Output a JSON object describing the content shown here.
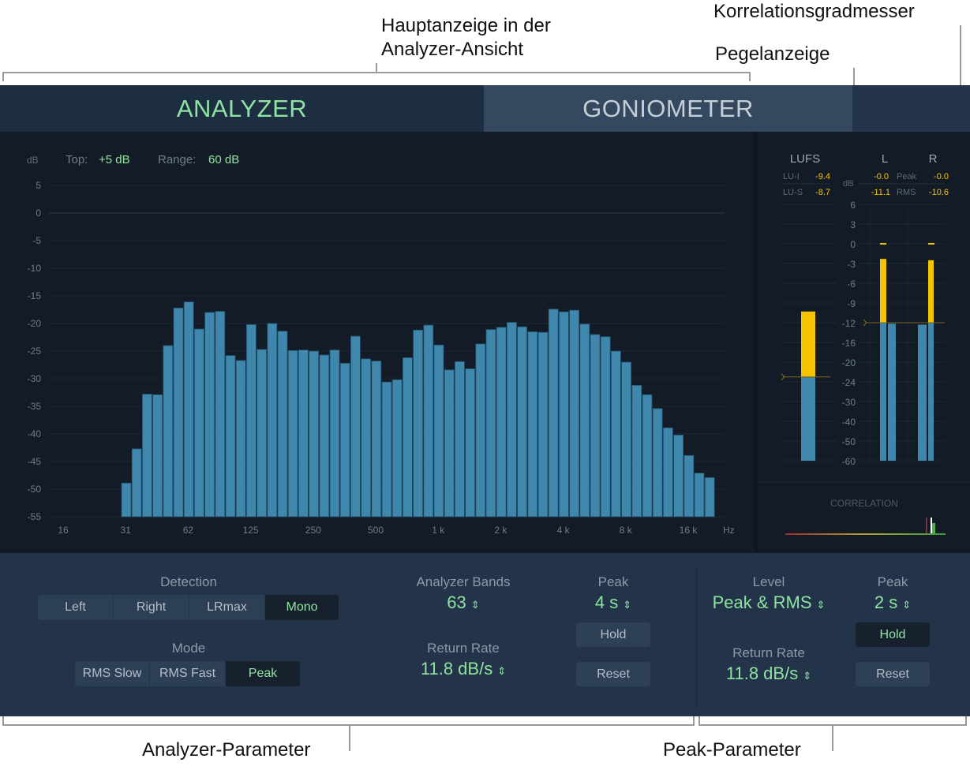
{
  "annotations": {
    "main_display": "Hauptanzeige in der\nAnalyzer-Ansicht",
    "correlation_meter": "Korrelationsgradmesser",
    "level_meter": "Pegelanzeige",
    "analyzer_params": "Analyzer-Parameter",
    "peak_params": "Peak-Parameter"
  },
  "tabs": [
    {
      "label": "ANALYZER",
      "active": true
    },
    {
      "label": "GONIOMETER",
      "active": false
    }
  ],
  "analyzer": {
    "db_label": "dB",
    "top_label": "Top:",
    "top_value": "+5 dB",
    "range_label": "Range:",
    "range_value": "60 dB"
  },
  "chart_data": {
    "type": "bar",
    "ylabel": "dB",
    "xlabel": "Hz",
    "ylim": [
      -55,
      5
    ],
    "y_ticks": [
      "5",
      "0",
      "-5",
      "-10",
      "-15",
      "-20",
      "-25",
      "-30",
      "-35",
      "-40",
      "-45",
      "-50",
      "-55"
    ],
    "x_ticks": [
      "16",
      "31",
      "62",
      "125",
      "250",
      "500",
      "1 k",
      "2 k",
      "4 k",
      "8 k",
      "16 k"
    ],
    "bands": 63,
    "values": [
      null,
      null,
      null,
      null,
      null,
      null,
      -48.9,
      -42.7,
      -32.8,
      -32.9,
      -24.0,
      -17.2,
      -16.1,
      -21.0,
      -18.0,
      -17.8,
      -25.8,
      -26.7,
      -20.2,
      -24.7,
      -20.0,
      -21.4,
      -24.9,
      -24.8,
      -25.0,
      -25.7,
      -24.8,
      -27.2,
      -22.3,
      -26.4,
      -26.8,
      -30.6,
      -30.2,
      -26.2,
      -21.2,
      -20.3,
      -23.9,
      -28.4,
      -26.9,
      -28.2,
      -23.7,
      -21.1,
      -20.7,
      -19.8,
      -20.6,
      -21.5,
      -21.6,
      -17.4,
      -17.9,
      -17.6,
      -20.1,
      -22.0,
      -22.4,
      -25.0,
      -27.0,
      -31.2,
      -32.9,
      -35.4,
      -38.9,
      -40.2,
      -43.9,
      -47.1,
      -47.9
    ],
    "grid": true,
    "bar_color": "#3f87ad"
  },
  "meters": {
    "lufs_title": "LUFS",
    "l_title": "L",
    "r_title": "R",
    "db_label": "dB",
    "lu_i_label": "LU-I",
    "lu_i_value": "-9.4",
    "lu_s_label": "LU-S",
    "lu_s_value": "-8.7",
    "peak_label": "Peak",
    "peak_l": "-0.0",
    "peak_r": "-0.0",
    "rms_label": "RMS",
    "rms_l": "-11.1",
    "rms_r": "-10.6",
    "scale": [
      "6",
      "3",
      "0",
      "-3",
      "-6",
      "-9",
      "-12",
      "-16",
      "-20",
      "-24",
      "-30",
      "-40",
      "-50",
      "-60"
    ],
    "lufs_bar": {
      "yellow_top": -10.3,
      "blue_top": -23,
      "target": -23
    },
    "l_peak_bar": {
      "yellow_top": -2.3,
      "blue_top": -12
    },
    "l_rms_bar": -12.2,
    "r_rms_bar": -12.4,
    "r_peak_bar": {
      "yellow_top": -2.5,
      "blue_top": -12
    },
    "target_level": -12,
    "peak_hold": 0,
    "colors": {
      "yellow": "#f5c400",
      "blue": "#3f87ad",
      "value_yellow": "#f5c400"
    }
  },
  "correlation": {
    "label": "CORRELATION"
  },
  "params": {
    "detection_label": "Detection",
    "detection_options": [
      "Left",
      "Right",
      "LRmax",
      "Mono"
    ],
    "detection_selected": "Mono",
    "mode_label": "Mode",
    "mode_options": [
      "RMS Slow",
      "RMS Fast",
      "Peak"
    ],
    "mode_selected": "Peak",
    "bands_label": "Analyzer Bands",
    "bands_value": "63",
    "return_rate_label": "Return Rate",
    "return_rate_value": "11.8 dB/s",
    "peak_label": "Peak",
    "peak_value": "4 s",
    "hold_label": "Hold",
    "reset_label": "Reset",
    "level_label": "Level",
    "level_value": "Peak & RMS",
    "peak2_label": "Peak",
    "peak2_value": "2 s",
    "hold2_label": "Hold",
    "hold2_active": true,
    "return_rate2_label": "Return Rate",
    "return_rate2_value": "11.8 dB/s",
    "reset2_label": "Reset"
  },
  "accent_color": "#8fe3a0"
}
